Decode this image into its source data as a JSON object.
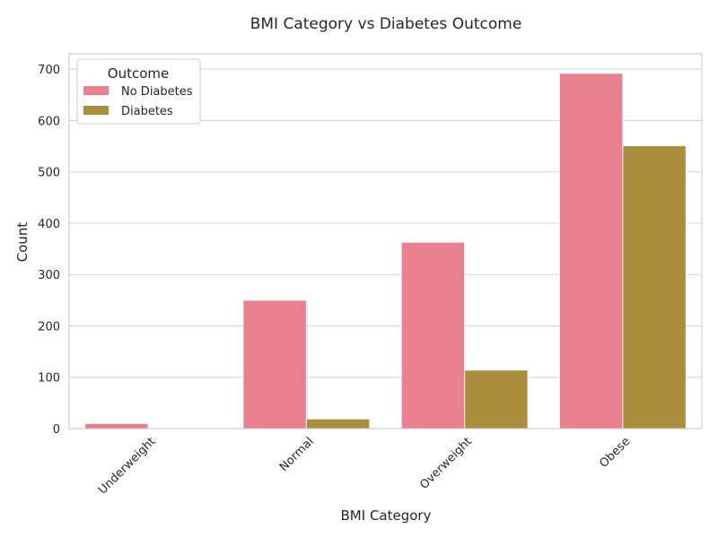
{
  "chart_data": {
    "type": "bar",
    "title": "BMI Category vs Diabetes Outcome",
    "xlabel": "BMI Category",
    "ylabel": "Count",
    "categories": [
      "Underweight",
      "Normal",
      "Overweight",
      "Obese"
    ],
    "series": [
      {
        "name": "No Diabetes",
        "color": "#e8808f",
        "values": [
          10,
          250,
          363,
          692
        ]
      },
      {
        "name": "Diabetes",
        "color": "#aa8d3d",
        "values": [
          0,
          19,
          114,
          551
        ]
      }
    ],
    "ylim": [
      0,
      730
    ],
    "yticks": [
      0,
      100,
      200,
      300,
      400,
      500,
      600,
      700
    ],
    "grid": true,
    "legend": {
      "title": "Outcome",
      "placement": "top-left"
    }
  }
}
